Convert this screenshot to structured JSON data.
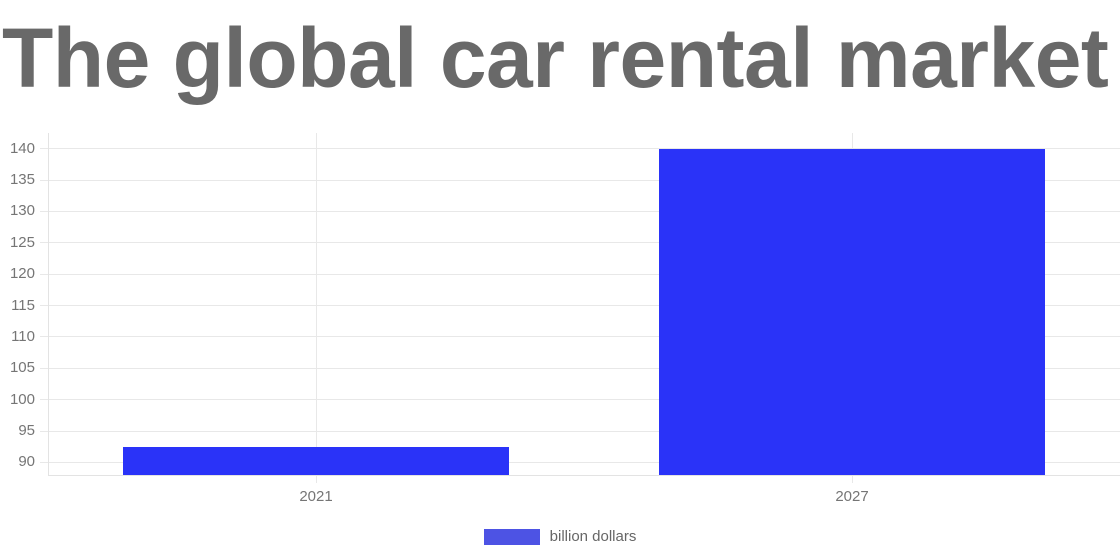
{
  "chart_data": {
    "type": "bar",
    "title": "The global car rental market",
    "categories": [
      "2021",
      "2027"
    ],
    "series": [
      {
        "name": "billion dollars",
        "values": [
          92.5,
          140
        ]
      }
    ],
    "xlabel": "",
    "ylabel": "",
    "ylim": [
      88,
      142.5
    ],
    "yticks": [
      90,
      95,
      100,
      105,
      110,
      115,
      120,
      125,
      130,
      135,
      140
    ],
    "grid": true,
    "legend_position": "bottom"
  },
  "legend": {
    "label": "billion dollars"
  },
  "colors": {
    "bar": "#2a33f8",
    "legend_swatch": "#4d53e4",
    "title_text": "#696969",
    "tick_text": "#757575",
    "legend_text": "#666666",
    "gridline": "#e8e8e8",
    "axis_border": "#e3e3e3",
    "background": "#ffffff"
  }
}
